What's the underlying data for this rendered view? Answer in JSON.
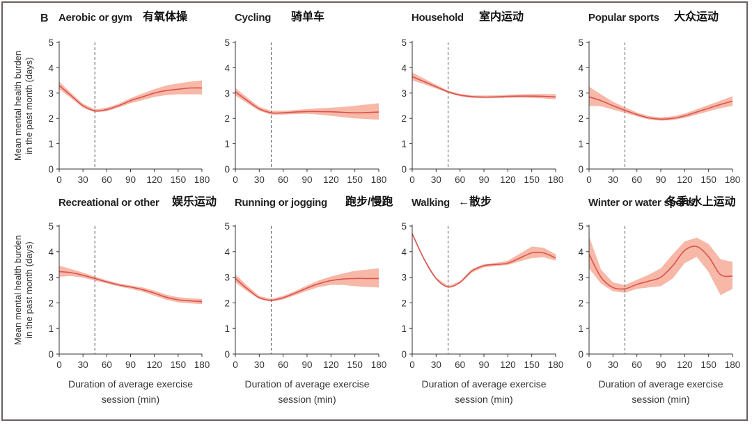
{
  "figure": {
    "panel_letter": "B",
    "ylabel_line1": "Mean mental health burden",
    "ylabel_line2": "in the past month (days)",
    "xlabel_line1": "Duration of average exercise",
    "xlabel_line2": "session (min)"
  },
  "colors": {
    "line": "#d9534f",
    "band": "#f4a08a",
    "axis": "#333333",
    "marker": "#555555"
  },
  "chart_data": [
    {
      "type": "line",
      "title": "Aerobic or gym",
      "title_cn": "有氧体操",
      "xlim": [
        0,
        180
      ],
      "ylim": [
        0,
        5
      ],
      "x_ticks": [
        0,
        30,
        60,
        90,
        120,
        150,
        180
      ],
      "y_ticks": [
        0,
        1,
        2,
        3,
        4,
        5
      ],
      "vline": 45,
      "x": [
        0,
        15,
        30,
        45,
        60,
        75,
        90,
        105,
        120,
        135,
        150,
        165,
        180
      ],
      "y": [
        3.3,
        2.9,
        2.5,
        2.3,
        2.35,
        2.5,
        2.7,
        2.85,
        3.0,
        3.1,
        3.15,
        3.2,
        3.2
      ],
      "lower": [
        3.15,
        2.8,
        2.42,
        2.24,
        2.28,
        2.43,
        2.6,
        2.72,
        2.85,
        2.92,
        2.95,
        2.95,
        2.95
      ],
      "upper": [
        3.45,
        3.0,
        2.58,
        2.36,
        2.42,
        2.58,
        2.8,
        2.98,
        3.15,
        3.3,
        3.38,
        3.45,
        3.5
      ]
    },
    {
      "type": "line",
      "title": "Cycling",
      "title_cn": "骑单车",
      "xlim": [
        0,
        180
      ],
      "ylim": [
        0,
        5
      ],
      "x_ticks": [
        0,
        30,
        60,
        90,
        120,
        150,
        180
      ],
      "y_ticks": [
        0,
        1,
        2,
        3,
        4,
        5
      ],
      "vline": 45,
      "x": [
        0,
        15,
        30,
        45,
        60,
        75,
        90,
        105,
        120,
        135,
        150,
        165,
        180
      ],
      "y": [
        3.05,
        2.7,
        2.38,
        2.22,
        2.22,
        2.25,
        2.27,
        2.27,
        2.26,
        2.24,
        2.22,
        2.23,
        2.25
      ],
      "lower": [
        2.9,
        2.6,
        2.3,
        2.15,
        2.15,
        2.17,
        2.18,
        2.15,
        2.1,
        2.05,
        2.0,
        1.97,
        1.95
      ],
      "upper": [
        3.2,
        2.82,
        2.46,
        2.3,
        2.3,
        2.33,
        2.37,
        2.4,
        2.42,
        2.45,
        2.5,
        2.55,
        2.6
      ]
    },
    {
      "type": "line",
      "title": "Household",
      "title_cn": "室内运动",
      "xlim": [
        0,
        180
      ],
      "ylim": [
        0,
        5
      ],
      "x_ticks": [
        0,
        30,
        60,
        90,
        120,
        150,
        180
      ],
      "y_ticks": [
        0,
        1,
        2,
        3,
        4,
        5
      ],
      "vline": 45,
      "x": [
        0,
        15,
        30,
        45,
        60,
        75,
        90,
        105,
        120,
        135,
        150,
        165,
        180
      ],
      "y": [
        3.65,
        3.45,
        3.25,
        3.05,
        2.92,
        2.86,
        2.84,
        2.85,
        2.87,
        2.88,
        2.88,
        2.87,
        2.85
      ],
      "lower": [
        3.5,
        3.35,
        3.18,
        3.0,
        2.87,
        2.81,
        2.79,
        2.8,
        2.81,
        2.82,
        2.81,
        2.79,
        2.75
      ],
      "upper": [
        3.82,
        3.57,
        3.33,
        3.1,
        2.97,
        2.91,
        2.9,
        2.91,
        2.93,
        2.95,
        2.96,
        2.96,
        2.96
      ]
    },
    {
      "type": "line",
      "title": "Popular sports",
      "title_cn": "大众运动",
      "xlim": [
        0,
        180
      ],
      "ylim": [
        0,
        5
      ],
      "x_ticks": [
        0,
        30,
        60,
        90,
        120,
        150,
        180
      ],
      "y_ticks": [
        0,
        1,
        2,
        3,
        4,
        5
      ],
      "vline": 45,
      "x": [
        0,
        15,
        30,
        45,
        60,
        75,
        90,
        105,
        120,
        135,
        150,
        165,
        180
      ],
      "y": [
        2.85,
        2.7,
        2.5,
        2.32,
        2.15,
        2.02,
        1.97,
        2.0,
        2.1,
        2.25,
        2.4,
        2.55,
        2.68
      ],
      "lower": [
        2.5,
        2.48,
        2.35,
        2.22,
        2.08,
        1.96,
        1.91,
        1.93,
        2.02,
        2.15,
        2.28,
        2.4,
        2.5
      ],
      "upper": [
        3.25,
        2.95,
        2.66,
        2.44,
        2.23,
        2.09,
        2.04,
        2.08,
        2.19,
        2.36,
        2.53,
        2.7,
        2.88
      ]
    },
    {
      "type": "line",
      "title": "Recreational or other",
      "title_cn": "娱乐运动",
      "xlim": [
        0,
        180
      ],
      "ylim": [
        0,
        5
      ],
      "x_ticks": [
        0,
        30,
        60,
        90,
        120,
        150,
        180
      ],
      "y_ticks": [
        0,
        1,
        2,
        3,
        4,
        5
      ],
      "vline": 45,
      "x": [
        0,
        15,
        30,
        45,
        60,
        75,
        90,
        105,
        120,
        135,
        150,
        165,
        180
      ],
      "y": [
        3.22,
        3.18,
        3.08,
        2.95,
        2.82,
        2.7,
        2.62,
        2.52,
        2.38,
        2.22,
        2.12,
        2.08,
        2.05
      ],
      "lower": [
        3.02,
        3.05,
        2.98,
        2.87,
        2.76,
        2.64,
        2.55,
        2.44,
        2.28,
        2.12,
        2.02,
        1.98,
        1.95
      ],
      "upper": [
        3.45,
        3.32,
        3.18,
        3.03,
        2.88,
        2.76,
        2.68,
        2.6,
        2.48,
        2.32,
        2.22,
        2.18,
        2.15
      ]
    },
    {
      "type": "line",
      "title": "Running or jogging",
      "title_cn": "跑步/慢跑",
      "xlim": [
        0,
        180
      ],
      "ylim": [
        0,
        5
      ],
      "x_ticks": [
        0,
        30,
        60,
        90,
        120,
        150,
        180
      ],
      "y_ticks": [
        0,
        1,
        2,
        3,
        4,
        5
      ],
      "vline": 45,
      "x": [
        0,
        15,
        30,
        45,
        60,
        75,
        90,
        105,
        120,
        135,
        150,
        165,
        180
      ],
      "y": [
        2.95,
        2.55,
        2.2,
        2.1,
        2.2,
        2.38,
        2.58,
        2.75,
        2.87,
        2.93,
        2.95,
        2.95,
        2.95
      ],
      "lower": [
        2.8,
        2.45,
        2.15,
        2.05,
        2.13,
        2.3,
        2.47,
        2.62,
        2.7,
        2.7,
        2.65,
        2.62,
        2.6
      ],
      "upper": [
        3.12,
        2.67,
        2.27,
        2.16,
        2.27,
        2.46,
        2.68,
        2.88,
        3.03,
        3.15,
        3.25,
        3.3,
        3.35
      ]
    },
    {
      "type": "line",
      "title": "Walking",
      "title_cn": "←散步",
      "xlim": [
        0,
        180
      ],
      "ylim": [
        0,
        5
      ],
      "x_ticks": [
        0,
        30,
        60,
        90,
        120,
        150,
        180
      ],
      "y_ticks": [
        0,
        1,
        2,
        3,
        4,
        5
      ],
      "vline": 45,
      "x": [
        0,
        15,
        30,
        45,
        60,
        75,
        90,
        105,
        120,
        135,
        150,
        165,
        180
      ],
      "y": [
        4.7,
        3.7,
        2.95,
        2.62,
        2.8,
        3.25,
        3.45,
        3.5,
        3.55,
        3.75,
        3.95,
        3.95,
        3.75
      ],
      "lower": [
        4.65,
        3.66,
        2.91,
        2.58,
        2.75,
        3.18,
        3.39,
        3.44,
        3.48,
        3.62,
        3.75,
        3.78,
        3.65
      ],
      "upper": [
        4.75,
        3.74,
        2.99,
        2.66,
        2.85,
        3.32,
        3.51,
        3.56,
        3.65,
        3.92,
        4.2,
        4.15,
        3.9
      ]
    },
    {
      "type": "line",
      "title": "Winter or water sports",
      "title_cn": "冬季/水上运动",
      "xlim": [
        0,
        180
      ],
      "ylim": [
        0,
        5
      ],
      "x_ticks": [
        0,
        30,
        60,
        90,
        120,
        150,
        180
      ],
      "y_ticks": [
        0,
        1,
        2,
        3,
        4,
        5
      ],
      "vline": 45,
      "x": [
        0,
        15,
        30,
        45,
        60,
        75,
        90,
        105,
        120,
        135,
        150,
        165,
        180
      ],
      "y": [
        3.9,
        3.0,
        2.6,
        2.55,
        2.72,
        2.85,
        3.0,
        3.45,
        4.05,
        4.2,
        3.8,
        3.1,
        3.05
      ],
      "lower": [
        3.35,
        2.75,
        2.45,
        2.4,
        2.55,
        2.6,
        2.65,
        2.95,
        3.55,
        3.8,
        3.2,
        2.3,
        2.55
      ],
      "upper": [
        4.6,
        3.3,
        2.8,
        2.7,
        2.9,
        3.1,
        3.35,
        3.9,
        4.4,
        4.55,
        4.3,
        3.7,
        3.6
      ]
    }
  ]
}
